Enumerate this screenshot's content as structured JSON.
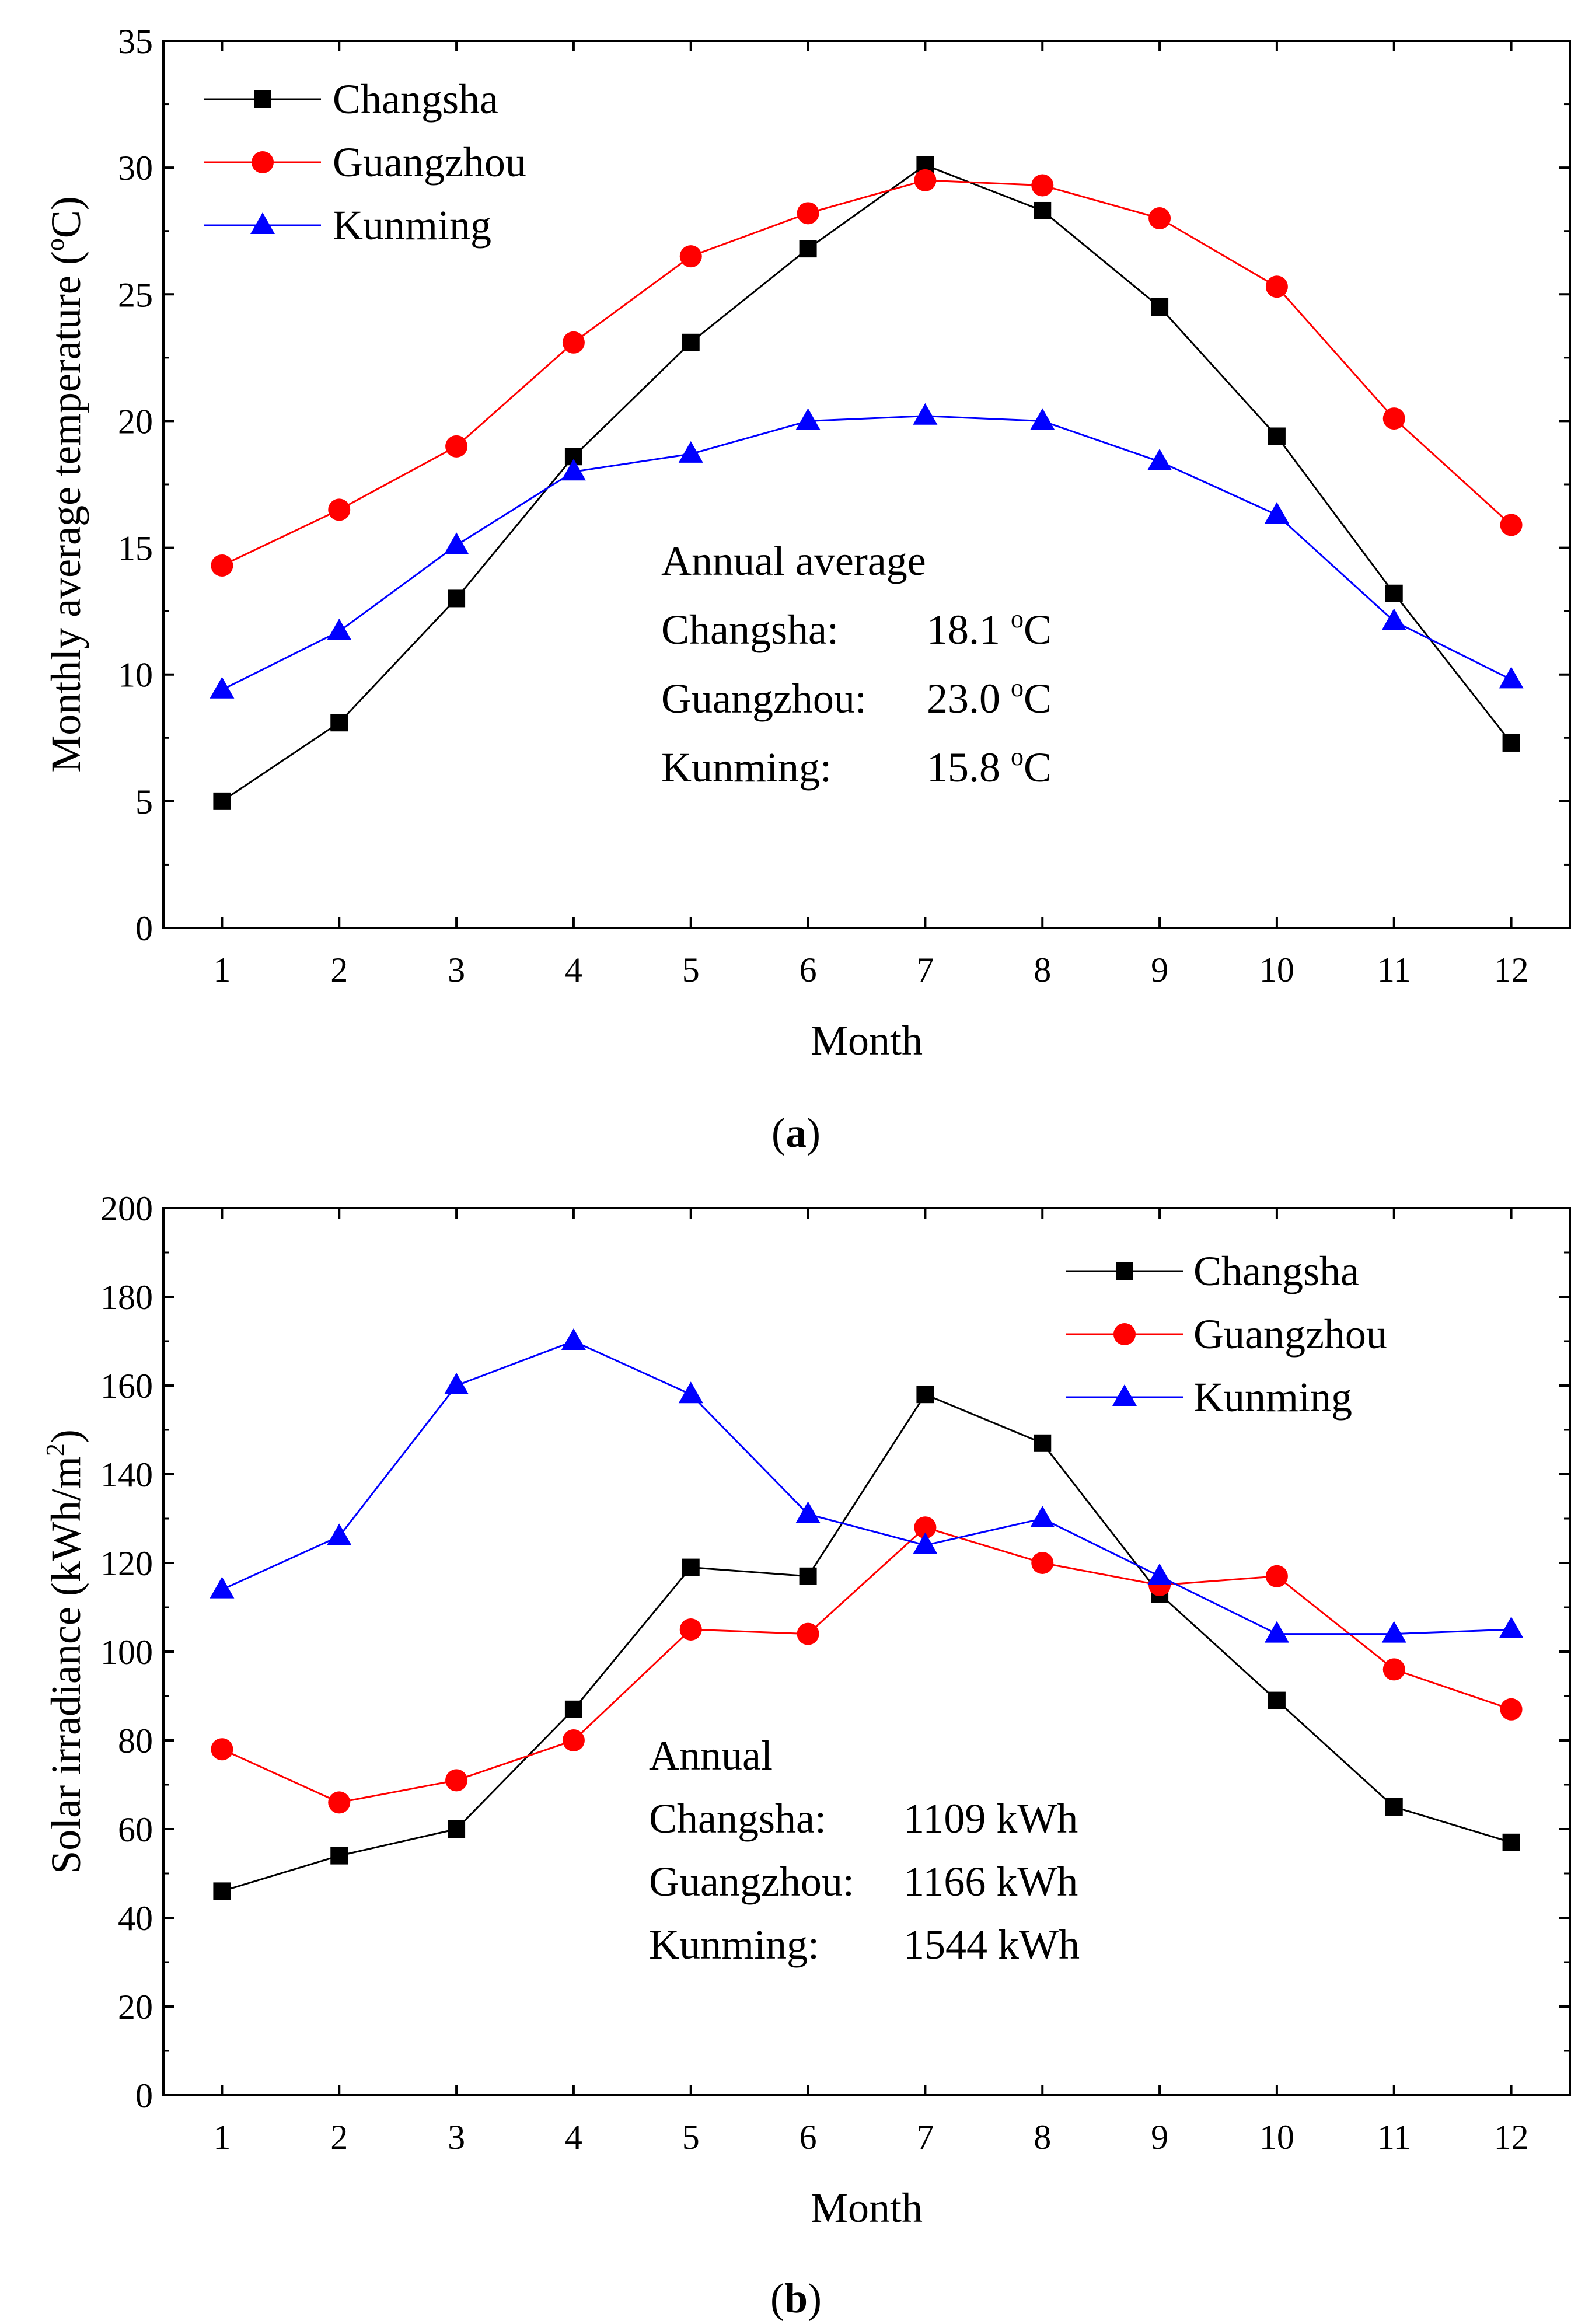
{
  "colors": {
    "Changsha": "#000000",
    "Guangzhou": "#ff0000",
    "Kunming": "#0000ff"
  },
  "chart_data": [
    {
      "type": "line",
      "caption": "a",
      "xlabel": "Month",
      "ylabel_main": "Monthly average temperature (",
      "ylabel_sup": "o",
      "ylabel_unit": "C)",
      "xlim": [
        0.5,
        12.5
      ],
      "ylim": [
        0,
        35
      ],
      "categories": [
        "1",
        "2",
        "3",
        "4",
        "5",
        "6",
        "7",
        "8",
        "9",
        "10",
        "11",
        "12"
      ],
      "x": [
        1,
        2,
        3,
        4,
        5,
        6,
        7,
        8,
        9,
        10,
        11,
        12
      ],
      "yticks": [
        0,
        5,
        10,
        15,
        20,
        25,
        30,
        35
      ],
      "legend_position": "top-left",
      "series": [
        {
          "name": "Changsha",
          "marker": "square",
          "values": [
            5.0,
            8.1,
            13.0,
            18.6,
            23.1,
            26.8,
            30.1,
            28.3,
            24.5,
            19.4,
            13.2,
            7.3
          ]
        },
        {
          "name": "Guangzhou",
          "marker": "circle",
          "values": [
            14.3,
            16.5,
            19.0,
            23.1,
            26.5,
            28.2,
            29.5,
            29.3,
            28.0,
            25.3,
            20.1,
            15.9
          ]
        },
        {
          "name": "Kunming",
          "marker": "triangle",
          "values": [
            9.4,
            11.7,
            15.1,
            18.0,
            18.7,
            20.0,
            20.2,
            20.0,
            18.4,
            16.3,
            12.1,
            9.8
          ]
        }
      ],
      "annotation": {
        "title": "Annual average",
        "rows": [
          {
            "label": "Changsha:",
            "value": "18.1",
            "sup": "o",
            "unit": "C"
          },
          {
            "label": "Guangzhou:",
            "value": "23.0",
            "sup": "o",
            "unit": "C"
          },
          {
            "label": "Kunming:",
            "value": "15.8",
            "sup": "o",
            "unit": "C"
          }
        ]
      }
    },
    {
      "type": "line",
      "caption": "b",
      "xlabel": "Month",
      "ylabel_main": "Solar irradiance (kWh/m",
      "ylabel_sup": "2",
      "ylabel_unit": ")",
      "xlim": [
        0.5,
        12.5
      ],
      "ylim": [
        0,
        200
      ],
      "categories": [
        "1",
        "2",
        "3",
        "4",
        "5",
        "6",
        "7",
        "8",
        "9",
        "10",
        "11",
        "12"
      ],
      "x": [
        1,
        2,
        3,
        4,
        5,
        6,
        7,
        8,
        9,
        10,
        11,
        12
      ],
      "yticks": [
        0,
        20,
        40,
        60,
        80,
        100,
        120,
        140,
        160,
        180,
        200
      ],
      "legend_position": "top-right",
      "series": [
        {
          "name": "Changsha",
          "marker": "square",
          "values": [
            46,
            54,
            60,
            87,
            119,
            117,
            158,
            147,
            113,
            89,
            65,
            57
          ]
        },
        {
          "name": "Guangzhou",
          "marker": "circle",
          "values": [
            78,
            66,
            71,
            80,
            105,
            104,
            128,
            120,
            115,
            117,
            96,
            87
          ]
        },
        {
          "name": "Kunming",
          "marker": "triangle",
          "values": [
            114,
            126,
            160,
            170,
            158,
            131,
            124,
            130,
            117,
            104,
            104,
            105
          ]
        }
      ],
      "annotation": {
        "title": "Annual",
        "rows": [
          {
            "label": "Changsha:",
            "value": "1109 kWh"
          },
          {
            "label": "Guangzhou:",
            "value": "1166 kWh"
          },
          {
            "label": "Kunming:",
            "value": "1544 kWh"
          }
        ]
      }
    }
  ]
}
